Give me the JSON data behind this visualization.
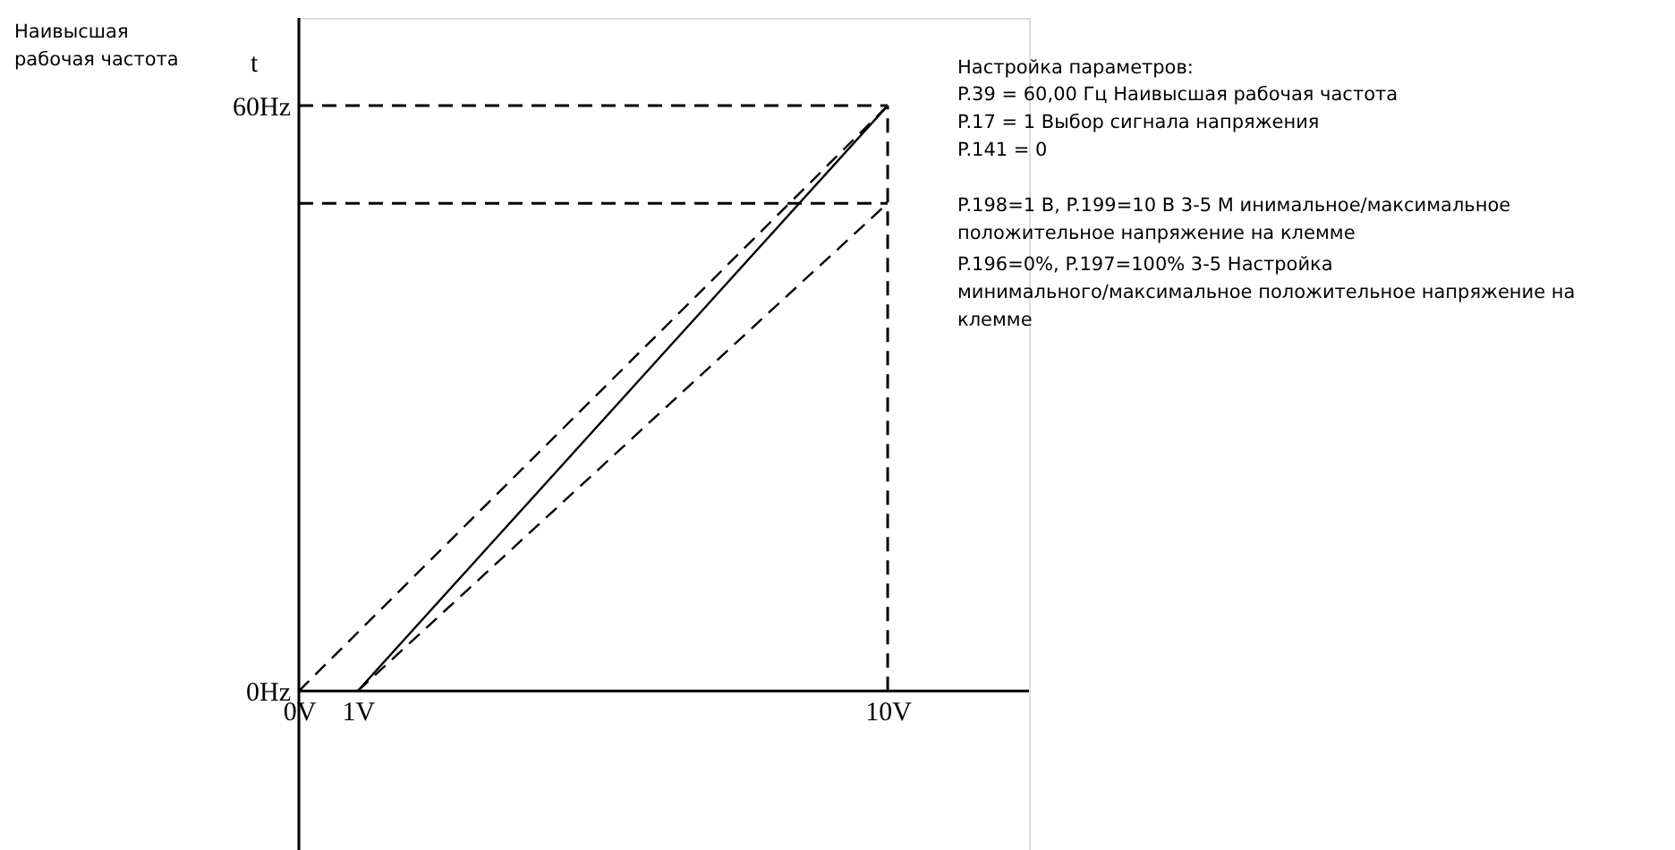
{
  "chart_data": {
    "type": "line",
    "title": "Настройка параметров:",
    "ylabel": "t",
    "xlim": [
      0,
      12.4
    ],
    "ylim": [
      -16.3,
      69
    ],
    "xticks": [
      {
        "value": 0,
        "label": "0V"
      },
      {
        "value": 1,
        "label": "1V"
      },
      {
        "value": 10,
        "label": "10V"
      }
    ],
    "yticks": [
      {
        "value": 0,
        "label": "0Hz"
      },
      {
        "value": 60,
        "label": "60Hz"
      }
    ],
    "grid": false,
    "marker": "none",
    "series": [
      {
        "color": "#000000",
        "line_style": "solid",
        "x": [
          1,
          10
        ],
        "values": [
          0,
          60
        ]
      },
      {
        "color": "#000000",
        "line_style": "dashed",
        "x": [
          0,
          10
        ],
        "values": [
          0,
          60
        ]
      },
      {
        "color": "#000000",
        "line_style": "dashed",
        "x": [
          1,
          10
        ],
        "values": [
          0,
          50
        ]
      }
    ],
    "ref_lines": [
      {
        "axis": "y",
        "value": 60,
        "color": "#000000",
        "line_style": "dashed"
      },
      {
        "axis": "y",
        "value": 50,
        "color": "#000000",
        "line_style": "dashed"
      },
      {
        "axis": "x",
        "value": 10,
        "color": "#000000",
        "line_style": "dashed"
      }
    ],
    "annotations": [
      "Наивысшая\nрабочая частота",
      "P.39 = 60,00 Гц Наивысшая рабочая частота\nP.17 = 1 Выбор сигнала напряжения\nP.141 = 0",
      "P.198=1 В, P.199=10 В  3-5 М  инимальное/максимальное\nположительное напряжение на клемме",
      "P.196=0%, P.197=100% 3-5 Настройка\nминимального/максимальное положительное напряжение на\nклемме"
    ]
  }
}
